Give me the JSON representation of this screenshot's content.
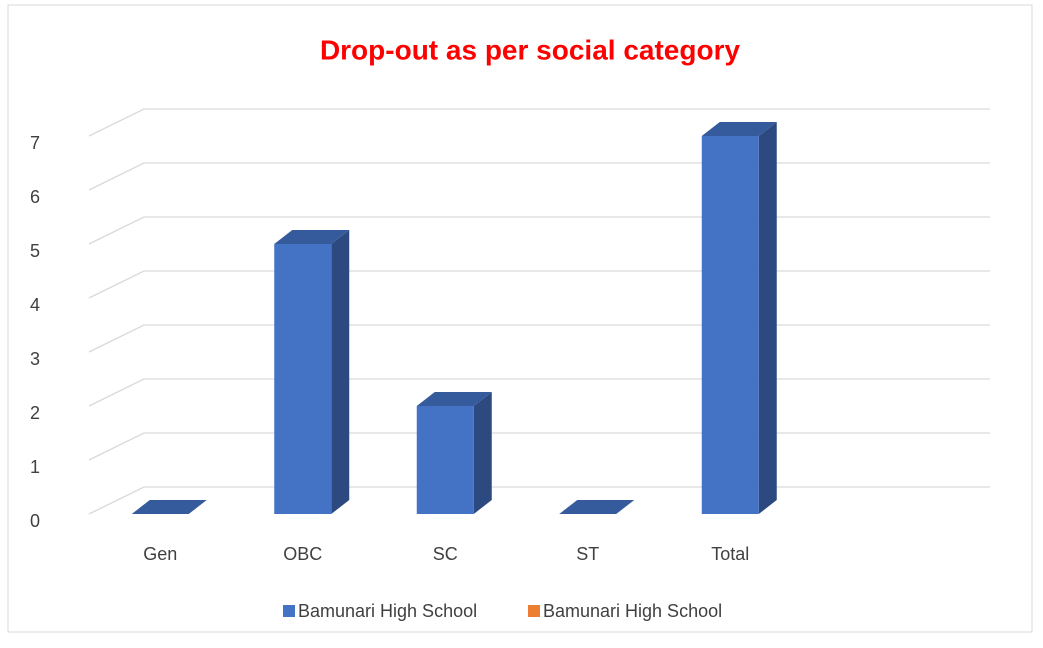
{
  "chart_data": {
    "type": "bar3d",
    "title": "Drop-out as per social category",
    "categories": [
      "Gen",
      "OBC",
      "SC",
      "ST",
      "Total"
    ],
    "series": [
      {
        "name": "Bamunari High School",
        "color": "#4472c4",
        "values": [
          0,
          5,
          2,
          0,
          7
        ]
      },
      {
        "name": "Bamunari High School",
        "color": "#ed7d31",
        "values": [
          null,
          null,
          null,
          null,
          null
        ]
      }
    ],
    "ylim": [
      0,
      7
    ],
    "yticks": [
      0,
      1,
      2,
      3,
      4,
      5,
      6,
      7
    ],
    "grid": true,
    "legend": "bottom"
  }
}
